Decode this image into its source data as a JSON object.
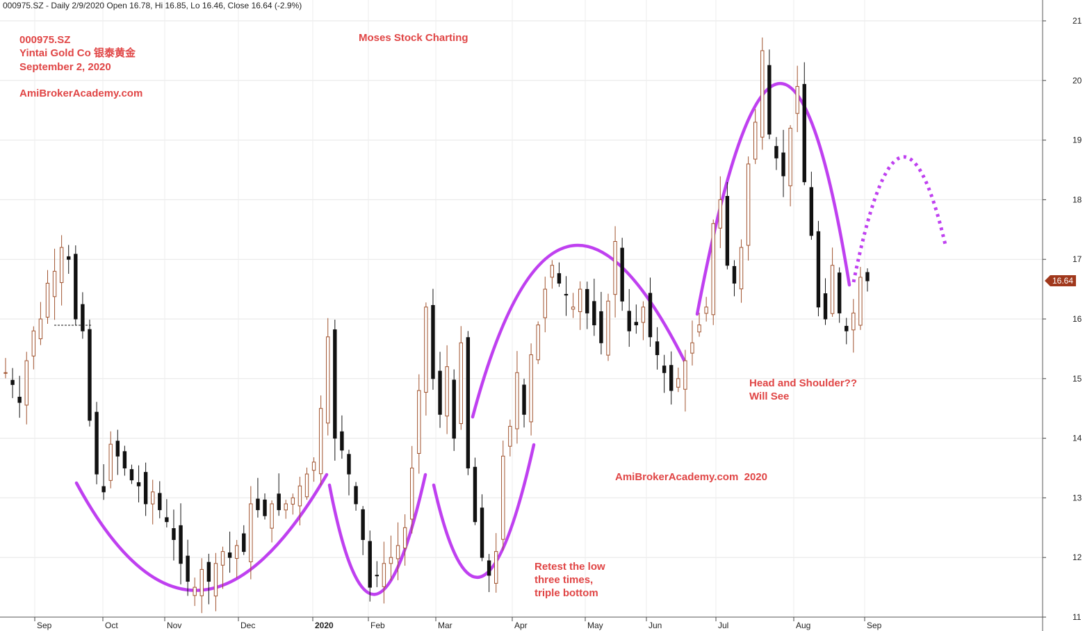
{
  "header": {
    "quote_line": "000975.SZ - Daily 2/9/2020 Open 16.78, Hi 16.85, Lo 16.46, Close 16.64 (-2.9%)"
  },
  "annotations": {
    "ticker": "000975.SZ",
    "company": "Yintai Gold Co 银泰黄金",
    "date": "September 2, 2020",
    "site": "AmiBrokerAcademy.com",
    "brand": "Moses Stock Charting",
    "watermark": "AmiBrokerAcademy.com  2020",
    "triple_bottom_line1": "Retest the low",
    "triple_bottom_line2": "three times,",
    "triple_bottom_line3": "triple bottom",
    "hs_line1": "Head and Shoulder??",
    "hs_line2": "Will See"
  },
  "chart_data": {
    "type": "candlestick",
    "y_axis_ticks": [
      11,
      12,
      13,
      14,
      15,
      16,
      17,
      18,
      19,
      20,
      21
    ],
    "ylim": [
      11,
      21
    ],
    "x_axis_labels": [
      "Sep",
      "Oct",
      "Nov",
      "Dec",
      "2020",
      "Feb",
      "Mar",
      "Apr",
      "May",
      "Jun",
      "Jul",
      "Aug",
      "Sep"
    ],
    "last_price": "16.64",
    "last_bar": {
      "open": 16.78,
      "high": 16.85,
      "low": 16.46,
      "close": 16.64,
      "change": "-2.9%"
    },
    "colors": {
      "up": "#a0522d",
      "down": "#111111",
      "pattern": "#bf40f0",
      "annotation": "#e04545",
      "price_tag": "#a0381c"
    },
    "approx_closes": [
      15.1,
      14.9,
      14.6,
      15.3,
      15.8,
      16.0,
      16.6,
      16.8,
      17.2,
      17.0,
      16.0,
      15.8,
      14.3,
      13.4,
      13.1,
      13.9,
      13.7,
      13.5,
      13.3,
      13.2,
      12.9,
      13.1,
      12.8,
      12.6,
      12.3,
      11.9,
      11.6,
      11.5,
      11.8,
      11.6,
      11.9,
      12.1,
      12.0,
      12.2,
      12.1,
      12.9,
      12.8,
      12.7,
      12.9,
      12.8,
      12.9,
      13.0,
      13.2,
      13.4,
      13.6,
      14.5,
      15.7,
      14.0,
      13.8,
      13.4,
      12.9,
      12.3,
      11.5,
      11.7,
      11.9,
      12.0,
      12.2,
      12.5,
      13.5,
      14.8,
      16.2,
      15.0,
      14.4,
      15.2,
      14.0,
      15.6,
      13.5,
      12.6,
      12.0,
      11.7,
      12.1,
      13.7,
      14.2,
      15.1,
      14.4,
      15.4,
      15.9,
      16.5,
      16.9,
      16.6,
      16.4,
      16.2,
      16.5,
      16.1,
      15.9,
      15.6,
      16.3,
      17.3,
      16.3,
      15.8,
      15.9,
      16.2,
      15.7,
      15.4,
      15.1,
      14.8,
      15.0,
      15.3,
      15.6,
      15.9,
      16.2,
      17.6,
      18.0,
      16.9,
      16.6,
      17.2,
      18.6,
      19.3,
      20.5,
      19.1,
      18.7,
      18.4,
      19.2,
      19.9,
      18.3,
      17.4,
      16.2,
      16.0,
      16.9,
      16.1,
      15.8,
      16.1,
      16.7,
      16.64
    ]
  }
}
